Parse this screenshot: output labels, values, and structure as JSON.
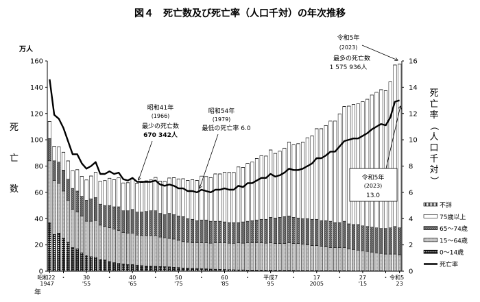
{
  "chart_data": {
    "type": "bar",
    "title": "図４　死亡数及び死亡率（人口千対）の年次推移",
    "y_unit": "万人",
    "ylabel_left": "死亡数",
    "ylabel_right": "死亡率（人口千対）",
    "xlabel": "年",
    "ylim_left": [
      0,
      160
    ],
    "yticks_left": [
      0,
      20,
      40,
      60,
      80,
      100,
      120,
      140,
      160
    ],
    "ylim_right": [
      0,
      16
    ],
    "yticks_right": [
      0,
      2,
      4,
      6,
      8,
      10,
      12,
      14,
      16
    ],
    "x_start_year": 1947,
    "x_end_year": 2023,
    "x_ticks": [
      {
        "year": 1947,
        "era": "昭和22",
        "western": "1947"
      },
      {
        "year": 1950,
        "era": "・",
        "western": ""
      },
      {
        "year": 1955,
        "era": "30",
        "western": "'55"
      },
      {
        "year": 1960,
        "era": "・",
        "western": ""
      },
      {
        "year": 1965,
        "era": "40",
        "western": "'65"
      },
      {
        "year": 1970,
        "era": "・",
        "western": ""
      },
      {
        "year": 1975,
        "era": "50",
        "western": "'75"
      },
      {
        "year": 1980,
        "era": "・",
        "western": ""
      },
      {
        "year": 1985,
        "era": "60",
        "western": "'85"
      },
      {
        "year": 1990,
        "era": "・",
        "western": ""
      },
      {
        "year": 1995,
        "era": "平成7",
        "western": "95"
      },
      {
        "year": 2000,
        "era": "・",
        "western": ""
      },
      {
        "year": 2005,
        "era": "17",
        "western": "2005"
      },
      {
        "year": 2010,
        "era": "・",
        "western": ""
      },
      {
        "year": 2015,
        "era": "27",
        "western": "'15"
      },
      {
        "year": 2020,
        "era": "・",
        "western": ""
      },
      {
        "year": 2023,
        "era": "令和5",
        "western": "23"
      }
    ],
    "stacked_series": [
      {
        "name": "0～14歳",
        "pattern": "dots-on-black",
        "values": [
          37,
          28,
          29,
          25,
          22,
          18,
          17,
          14,
          12,
          11,
          10.5,
          9,
          8.5,
          7.5,
          6.5,
          6,
          5.5,
          5,
          5,
          4.5,
          4.3,
          4,
          4,
          3.8,
          3.6,
          3.4,
          3.3,
          3,
          2.8,
          2.5,
          2.3,
          2.1,
          2,
          1.9,
          1.8,
          1.6,
          1.5,
          1.4,
          1.3,
          1.2,
          1.1,
          1,
          1,
          0.9,
          0.9,
          0.8,
          0.8,
          0.8,
          0.8,
          0.7,
          0.7,
          0.6,
          0.6,
          0.6,
          0.5,
          0.5,
          0.5,
          0.5,
          0.5,
          0.4,
          0.4,
          0.4,
          0.4,
          0.4,
          0.4,
          0.4,
          0.3,
          0.3,
          0.3,
          0.3,
          0.3,
          0.3,
          0.3,
          0.2,
          0.2,
          0.2,
          0.2
        ]
      },
      {
        "name": "15～64歳",
        "pattern": "light-gray",
        "values": [
          47,
          41,
          38,
          36,
          32,
          29,
          28,
          28,
          26,
          27,
          28,
          26,
          25.5,
          25.5,
          25.5,
          25,
          24,
          24,
          24,
          23,
          22.7,
          23,
          23,
          23.2,
          22.4,
          22.1,
          21.7,
          21.5,
          20.7,
          20,
          19.7,
          19.4,
          19.5,
          19.6,
          19.7,
          19.7,
          20,
          20.1,
          20.2,
          20.1,
          20.1,
          20.5,
          20.3,
          20.6,
          20.6,
          20.7,
          20.7,
          20.5,
          20.7,
          20.3,
          20.3,
          20.4,
          20.9,
          20.4,
          20.5,
          20,
          19.5,
          19,
          19,
          18.6,
          18.1,
          17.6,
          17.6,
          17.6,
          17.6,
          16.6,
          16.2,
          15.7,
          15.2,
          14.7,
          14.2,
          13.7,
          13.2,
          12.8,
          12.8,
          12.8,
          12.3
        ]
      },
      {
        "name": "65～74歳",
        "pattern": "dark-crosshatch",
        "values": [
          17,
          15,
          16,
          16,
          16,
          16,
          16,
          15,
          16,
          17,
          17.5,
          16,
          16,
          17,
          17,
          18,
          16.5,
          17,
          18,
          17.5,
          18,
          18.5,
          19,
          19,
          18,
          17.5,
          19,
          18.5,
          18.5,
          19,
          18,
          18,
          17,
          17.5,
          17.5,
          16.7,
          16.5,
          16.5,
          16,
          15.7,
          15.8,
          15.5,
          16.2,
          16.5,
          17,
          17.5,
          18,
          18.2,
          19.5,
          19.5,
          20,
          20.5,
          20.5,
          20,
          19.5,
          19.5,
          20,
          20,
          20,
          19.5,
          20,
          20,
          19,
          19,
          20,
          19,
          19,
          19.5,
          19,
          19,
          19,
          19,
          19,
          19.5,
          20,
          21,
          20.5
        ]
      },
      {
        "name": "75歳以上",
        "pattern": "white",
        "values": [
          12.8,
          11.1,
          11.5,
          13.5,
          13.9,
          13.5,
          16.2,
          15.1,
          15.4,
          17.4,
          19.2,
          17.4,
          18.9,
          20.7,
          20.6,
          22,
          21.1,
          21.3,
          23,
          22,
          22.5,
          23.2,
          23.4,
          25.3,
          24.5,
          25.3,
          26.9,
          28.1,
          28.2,
          28.8,
          29,
          30.1,
          30.5,
          33.3,
          33,
          33.2,
          36,
          36,
          37.7,
          38.1,
          38.1,
          42.3,
          41.4,
          44,
          44.5,
          46.7,
          48.4,
          48.1,
          51.2,
          49.1,
          50.3,
          52.1,
          56.2,
          55.2,
          56.5,
          58.2,
          61.5,
          63.4,
          68.9,
          69.9,
          72.3,
          76.2,
          77.2,
          82.7,
          87.3,
          89.6,
          91.3,
          91.8,
          94.5,
          96.8,
          100.5,
          103.2,
          105.6,
          104.8,
          111,
          122.9,
          124.6
        ]
      },
      {
        "name": "不詳",
        "pattern": "vertical-stripes",
        "values": [
          0.1,
          0.1,
          0.1,
          0.1,
          0.1,
          0.1,
          0.1,
          0.1,
          0.1,
          0.1,
          0.1,
          0.1,
          0.1,
          0.1,
          0.1,
          0.1,
          0.1,
          0.1,
          0.1,
          0.1,
          0.1,
          0.1,
          0.1,
          0.1,
          0.1,
          0.1,
          0.1,
          0.1,
          0.1,
          0.1,
          0.1,
          0.1,
          0.1,
          0.1,
          0.1,
          0.1,
          0.1,
          0.1,
          0.1,
          0.1,
          0.1,
          0.1,
          0.1,
          0.1,
          0.1,
          0.1,
          0.1,
          0.1,
          0.1,
          0.1,
          0.1,
          0.1,
          0.1,
          0.1,
          0.1,
          0.1,
          0.1,
          0.1,
          0.1,
          0.1,
          0.1,
          0.1,
          0.1,
          0.1,
          0.1,
          0.1,
          0.1,
          0.1,
          0.1,
          0.1,
          0.1,
          0.1,
          0.1,
          0.1,
          0.1,
          0.1,
          0.1
        ]
      }
    ],
    "line_series": {
      "name": "死亡率",
      "axis": "right",
      "values": [
        14.6,
        11.9,
        11.6,
        10.9,
        9.9,
        8.9,
        8.9,
        8.2,
        7.8,
        8.0,
        8.3,
        7.4,
        7.4,
        7.6,
        7.4,
        7.5,
        7.0,
        6.9,
        7.1,
        6.8,
        6.8,
        6.8,
        6.8,
        6.9,
        6.6,
        6.5,
        6.6,
        6.5,
        6.3,
        6.3,
        6.1,
        6.1,
        6.0,
        6.2,
        6.1,
        6.0,
        6.2,
        6.2,
        6.3,
        6.2,
        6.2,
        6.5,
        6.4,
        6.7,
        6.7,
        6.9,
        7.1,
        7.1,
        7.4,
        7.2,
        7.3,
        7.5,
        7.8,
        7.7,
        7.7,
        7.8,
        8.0,
        8.2,
        8.6,
        8.6,
        8.8,
        9.1,
        9.1,
        9.5,
        9.9,
        10.0,
        10.1,
        10.1,
        10.3,
        10.5,
        10.8,
        11.0,
        11.2,
        11.1,
        11.7,
        12.9,
        13.0
      ]
    },
    "legend_order": [
      "不詳",
      "75歳以上",
      "65～74歳",
      "15～64歳",
      "0～14歳",
      "死亡率"
    ],
    "legend_placement": "right",
    "grid": false,
    "annotations": {
      "max_deaths": {
        "line1": "令和5年",
        "line2": "(2023)",
        "line3": "最多の死亡数",
        "line4": "1 575 936人"
      },
      "min_deaths": {
        "line1": "昭和41年",
        "line2": "(1966)",
        "line3": "最少の死亡数",
        "line4": "670 342人"
      },
      "min_rate": {
        "line1": "昭和54年",
        "line2": "(1979)",
        "line3": "最低の死亡率 6.0"
      },
      "rate_2023": {
        "line1": "令和5年",
        "line2": "(2023)",
        "line3": "13.0"
      }
    }
  }
}
